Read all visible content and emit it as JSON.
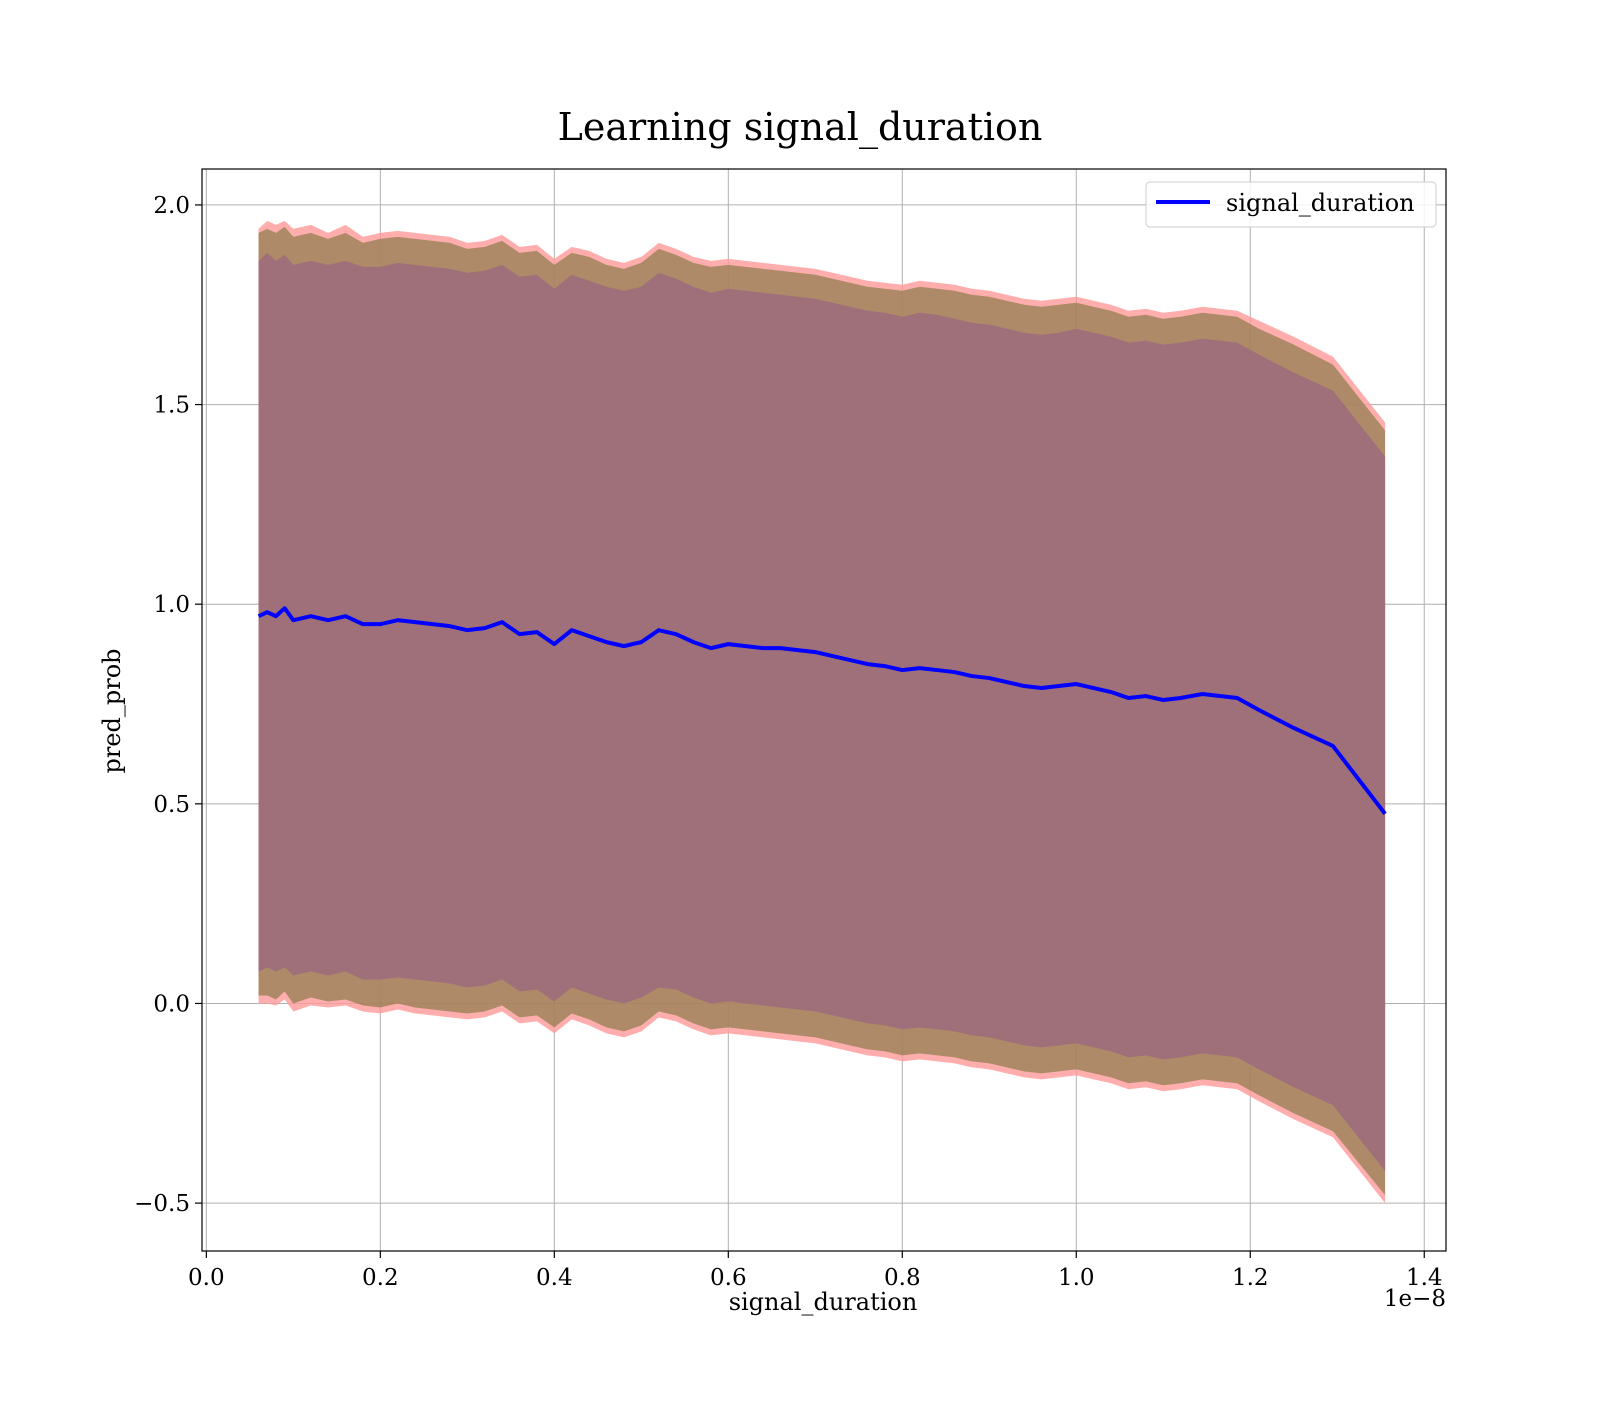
{
  "chart_data": {
    "type": "line",
    "title": "Learning signal_duration",
    "xlabel": "signal_duration",
    "ylabel": "pred_prob",
    "x_offset_label": "1e−8",
    "xlim": [
      -0.005,
      1.425
    ],
    "ylim": [
      -0.62,
      2.09
    ],
    "x_ticks": [
      0.0,
      0.2,
      0.4,
      0.6,
      0.8,
      1.0,
      1.2,
      1.4
    ],
    "x_tick_labels": [
      "0.0",
      "0.2",
      "0.4",
      "0.6",
      "0.8",
      "1.0",
      "1.2",
      "1.4"
    ],
    "y_ticks": [
      -0.5,
      0.0,
      0.5,
      1.0,
      1.5,
      2.0
    ],
    "y_tick_labels": [
      "−0.5",
      "0.0",
      "0.5",
      "1.0",
      "1.5",
      "2.0"
    ],
    "grid": true,
    "legend": {
      "position": "upper right",
      "entries": [
        "signal_duration"
      ]
    },
    "colors": {
      "line": "#0000ff",
      "outer_band": "#ff9999",
      "inner_band": "#8c7a4a",
      "core_band": "#a0707a",
      "grid": "#b0b0b0"
    },
    "series": [
      {
        "name": "signal_duration",
        "x": [
          0.06,
          0.07,
          0.08,
          0.09,
          0.1,
          0.12,
          0.14,
          0.16,
          0.18,
          0.2,
          0.22,
          0.24,
          0.26,
          0.28,
          0.3,
          0.32,
          0.34,
          0.36,
          0.38,
          0.4,
          0.42,
          0.44,
          0.46,
          0.48,
          0.5,
          0.52,
          0.54,
          0.56,
          0.58,
          0.6,
          0.62,
          0.64,
          0.66,
          0.68,
          0.7,
          0.72,
          0.74,
          0.76,
          0.78,
          0.8,
          0.82,
          0.84,
          0.86,
          0.88,
          0.9,
          0.92,
          0.94,
          0.96,
          0.98,
          1.0,
          1.02,
          1.04,
          1.06,
          1.08,
          1.1,
          1.12,
          1.145,
          1.185,
          1.21,
          1.25,
          1.295,
          1.355
        ],
        "mean": [
          0.97,
          0.98,
          0.97,
          0.99,
          0.96,
          0.97,
          0.96,
          0.97,
          0.95,
          0.95,
          0.96,
          0.955,
          0.95,
          0.945,
          0.935,
          0.94,
          0.955,
          0.925,
          0.93,
          0.9,
          0.935,
          0.92,
          0.905,
          0.895,
          0.905,
          0.935,
          0.925,
          0.905,
          0.89,
          0.9,
          0.895,
          0.89,
          0.89,
          0.885,
          0.88,
          0.87,
          0.86,
          0.85,
          0.845,
          0.835,
          0.84,
          0.835,
          0.83,
          0.82,
          0.815,
          0.805,
          0.795,
          0.79,
          0.795,
          0.8,
          0.79,
          0.78,
          0.765,
          0.77,
          0.76,
          0.765,
          0.775,
          0.765,
          0.735,
          0.69,
          0.645,
          0.475
        ],
        "outer_upper": [
          1.94,
          1.96,
          1.95,
          1.96,
          1.94,
          1.95,
          1.93,
          1.95,
          1.92,
          1.93,
          1.935,
          1.93,
          1.925,
          1.92,
          1.905,
          1.91,
          1.925,
          1.895,
          1.9,
          1.865,
          1.895,
          1.885,
          1.865,
          1.855,
          1.87,
          1.905,
          1.89,
          1.87,
          1.86,
          1.865,
          1.86,
          1.855,
          1.85,
          1.845,
          1.84,
          1.83,
          1.82,
          1.81,
          1.805,
          1.8,
          1.81,
          1.805,
          1.8,
          1.79,
          1.785,
          1.775,
          1.765,
          1.76,
          1.765,
          1.77,
          1.76,
          1.75,
          1.735,
          1.74,
          1.73,
          1.735,
          1.745,
          1.735,
          1.71,
          1.67,
          1.62,
          1.455
        ],
        "outer_lower": [
          0.0,
          0.0,
          -0.005,
          0.01,
          -0.02,
          -0.005,
          -0.01,
          -0.005,
          -0.02,
          -0.025,
          -0.015,
          -0.025,
          -0.03,
          -0.035,
          -0.04,
          -0.035,
          -0.02,
          -0.05,
          -0.045,
          -0.075,
          -0.04,
          -0.055,
          -0.075,
          -0.085,
          -0.07,
          -0.035,
          -0.045,
          -0.065,
          -0.08,
          -0.075,
          -0.08,
          -0.085,
          -0.09,
          -0.095,
          -0.1,
          -0.11,
          -0.12,
          -0.13,
          -0.135,
          -0.145,
          -0.14,
          -0.145,
          -0.15,
          -0.16,
          -0.165,
          -0.175,
          -0.185,
          -0.19,
          -0.185,
          -0.18,
          -0.19,
          -0.2,
          -0.215,
          -0.21,
          -0.22,
          -0.215,
          -0.205,
          -0.215,
          -0.245,
          -0.29,
          -0.335,
          -0.5
        ],
        "inner_upper": [
          1.93,
          1.94,
          1.93,
          1.945,
          1.92,
          1.93,
          1.915,
          1.93,
          1.905,
          1.915,
          1.92,
          1.915,
          1.91,
          1.905,
          1.89,
          1.895,
          1.91,
          1.88,
          1.885,
          1.85,
          1.88,
          1.87,
          1.85,
          1.84,
          1.855,
          1.89,
          1.875,
          1.855,
          1.845,
          1.85,
          1.845,
          1.84,
          1.835,
          1.83,
          1.825,
          1.815,
          1.805,
          1.795,
          1.79,
          1.785,
          1.795,
          1.79,
          1.785,
          1.775,
          1.77,
          1.76,
          1.75,
          1.745,
          1.75,
          1.755,
          1.745,
          1.735,
          1.72,
          1.725,
          1.715,
          1.72,
          1.73,
          1.72,
          1.69,
          1.65,
          1.6,
          1.435
        ],
        "inner_lower": [
          0.02,
          0.02,
          0.01,
          0.03,
          0.0,
          0.015,
          0.005,
          0.01,
          -0.005,
          -0.01,
          0.0,
          -0.01,
          -0.015,
          -0.02,
          -0.025,
          -0.02,
          -0.005,
          -0.035,
          -0.03,
          -0.06,
          -0.025,
          -0.04,
          -0.06,
          -0.07,
          -0.055,
          -0.02,
          -0.03,
          -0.05,
          -0.065,
          -0.06,
          -0.065,
          -0.07,
          -0.075,
          -0.08,
          -0.085,
          -0.095,
          -0.105,
          -0.115,
          -0.12,
          -0.13,
          -0.125,
          -0.13,
          -0.135,
          -0.145,
          -0.15,
          -0.16,
          -0.17,
          -0.175,
          -0.17,
          -0.165,
          -0.175,
          -0.185,
          -0.2,
          -0.195,
          -0.205,
          -0.2,
          -0.19,
          -0.2,
          -0.23,
          -0.275,
          -0.32,
          -0.48
        ],
        "core_upper": [
          1.86,
          1.88,
          1.86,
          1.875,
          1.85,
          1.86,
          1.85,
          1.86,
          1.845,
          1.845,
          1.855,
          1.85,
          1.845,
          1.84,
          1.83,
          1.835,
          1.85,
          1.82,
          1.825,
          1.79,
          1.825,
          1.81,
          1.795,
          1.785,
          1.795,
          1.83,
          1.815,
          1.795,
          1.78,
          1.79,
          1.785,
          1.78,
          1.775,
          1.77,
          1.765,
          1.755,
          1.745,
          1.735,
          1.73,
          1.72,
          1.73,
          1.725,
          1.715,
          1.705,
          1.7,
          1.69,
          1.68,
          1.675,
          1.68,
          1.69,
          1.68,
          1.67,
          1.655,
          1.66,
          1.65,
          1.655,
          1.665,
          1.655,
          1.625,
          1.58,
          1.535,
          1.37
        ],
        "core_lower": [
          0.08,
          0.09,
          0.08,
          0.09,
          0.07,
          0.08,
          0.07,
          0.08,
          0.06,
          0.06,
          0.065,
          0.06,
          0.055,
          0.05,
          0.04,
          0.045,
          0.06,
          0.03,
          0.035,
          0.005,
          0.04,
          0.025,
          0.01,
          0.0,
          0.015,
          0.04,
          0.035,
          0.015,
          0.0,
          0.005,
          0.0,
          -0.005,
          -0.01,
          -0.015,
          -0.02,
          -0.03,
          -0.04,
          -0.05,
          -0.055,
          -0.065,
          -0.06,
          -0.065,
          -0.07,
          -0.08,
          -0.085,
          -0.095,
          -0.105,
          -0.11,
          -0.105,
          -0.1,
          -0.11,
          -0.12,
          -0.135,
          -0.13,
          -0.14,
          -0.135,
          -0.125,
          -0.135,
          -0.165,
          -0.21,
          -0.255,
          -0.42
        ]
      }
    ]
  }
}
